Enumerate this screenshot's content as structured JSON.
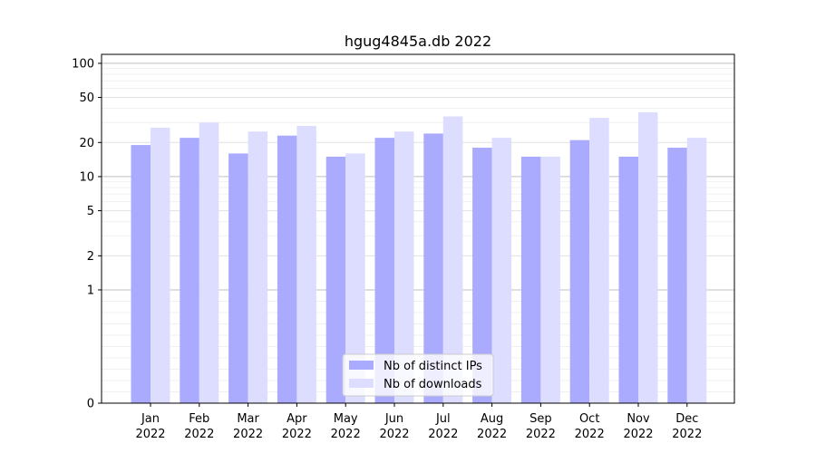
{
  "chart_data": {
    "type": "bar",
    "title": "hgug4845a.db 2022",
    "xlabel": "",
    "ylabel": "",
    "y_scale": "symlog",
    "ylim": [
      0,
      120
    ],
    "y_ticks": [
      0,
      1,
      2,
      5,
      10,
      20,
      50,
      100
    ],
    "grid": "horizontal",
    "legend_position": "bottom-center",
    "categories": [
      [
        "Jan",
        "2022"
      ],
      [
        "Feb",
        "2022"
      ],
      [
        "Mar",
        "2022"
      ],
      [
        "Apr",
        "2022"
      ],
      [
        "May",
        "2022"
      ],
      [
        "Jun",
        "2022"
      ],
      [
        "Jul",
        "2022"
      ],
      [
        "Aug",
        "2022"
      ],
      [
        "Sep",
        "2022"
      ],
      [
        "Oct",
        "2022"
      ],
      [
        "Nov",
        "2022"
      ],
      [
        "Dec",
        "2022"
      ]
    ],
    "series": [
      {
        "name": "Nb of distinct IPs",
        "color": "#aaaaff",
        "values": [
          19,
          22,
          16,
          23,
          15,
          22,
          24,
          18,
          15,
          21,
          15,
          18
        ]
      },
      {
        "name": "Nb of downloads",
        "color": "#ddddff",
        "values": [
          27,
          30,
          25,
          28,
          16,
          25,
          34,
          22,
          15,
          33,
          37,
          22
        ]
      }
    ]
  }
}
